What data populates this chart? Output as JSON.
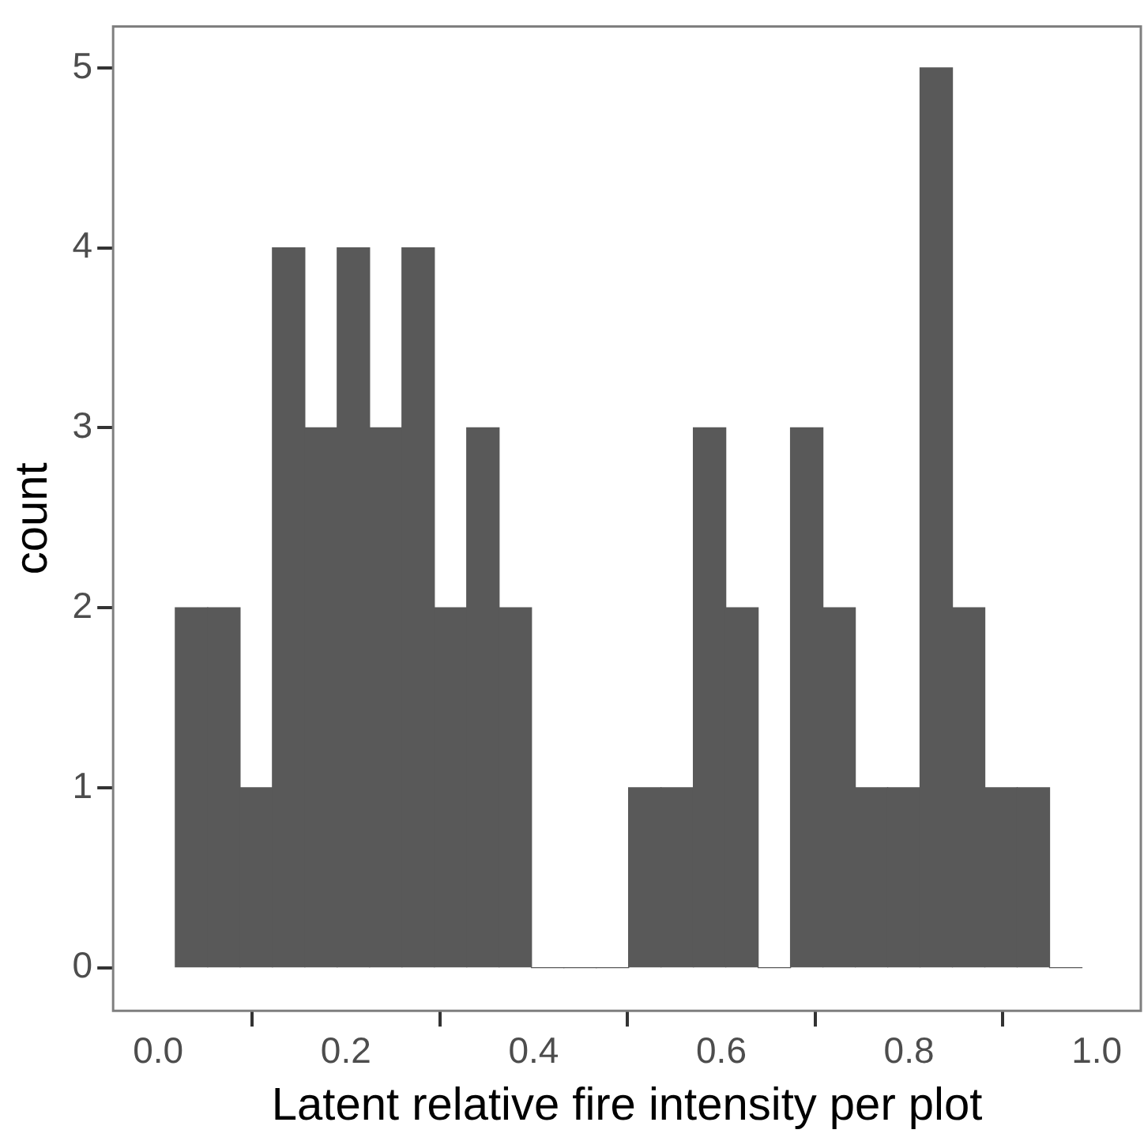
{
  "chart_data": {
    "type": "histogram",
    "xlabel": "Latent relative fire intensity per plot",
    "ylabel": "count",
    "color": "#595959",
    "bins": [
      0.018,
      0.053,
      0.087,
      0.122,
      0.156,
      0.191,
      0.225,
      0.26,
      0.294,
      0.329,
      0.363,
      0.398,
      0.432,
      0.467,
      0.501,
      0.536,
      0.57,
      0.605,
      0.639,
      0.674,
      0.708,
      0.743,
      0.777,
      0.812,
      0.846,
      0.881,
      0.915,
      0.95,
      0.984
    ],
    "values": [
      2,
      2,
      1,
      4,
      3,
      4,
      3,
      4,
      2,
      3,
      2,
      0,
      0,
      0,
      1,
      1,
      3,
      2,
      0,
      3,
      2,
      1,
      1,
      5,
      2,
      1,
      1,
      0
    ],
    "xlim": [
      -0.048,
      1.047
    ],
    "xticks": [
      {
        "value": 0,
        "label": "0.0"
      },
      0.2,
      0.4,
      0.6,
      0.8,
      {
        "value": 1,
        "label": "1.0"
      }
    ],
    "ylim": [
      -0.24,
      5.23
    ],
    "yticks": [
      0,
      1,
      2,
      3,
      4,
      5
    ],
    "grid": false,
    "legend": false
  }
}
